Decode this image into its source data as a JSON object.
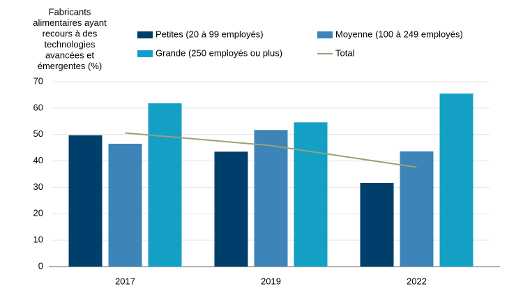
{
  "chart_data": {
    "type": "bar",
    "ylabel": [
      "Fabricants",
      "alimentaires ayant",
      "recours à des",
      "technologies",
      "avancées et",
      "émergentes (%)"
    ],
    "categories": [
      "2017",
      "2019",
      "2022"
    ],
    "series": [
      {
        "name": "Petites (20 à 99 employés)",
        "color": "#003f6b",
        "values": [
          49.7,
          43.5,
          31.7
        ]
      },
      {
        "name": "Moyenne (100 à 249 employés)",
        "color": "#3d84b8",
        "values": [
          46.5,
          51.7,
          43.6
        ]
      },
      {
        "name": "Grande (250 employés ou plus)",
        "color": "#13a0c4",
        "values": [
          61.8,
          54.6,
          65.5
        ]
      },
      {
        "name": "Total",
        "type": "line",
        "color": "#94a37a",
        "values": [
          50.6,
          45.8,
          37.6
        ]
      }
    ],
    "ylim": [
      0,
      70
    ],
    "yticks": [
      0,
      10,
      20,
      30,
      40,
      50,
      60,
      70
    ],
    "grid": true
  }
}
